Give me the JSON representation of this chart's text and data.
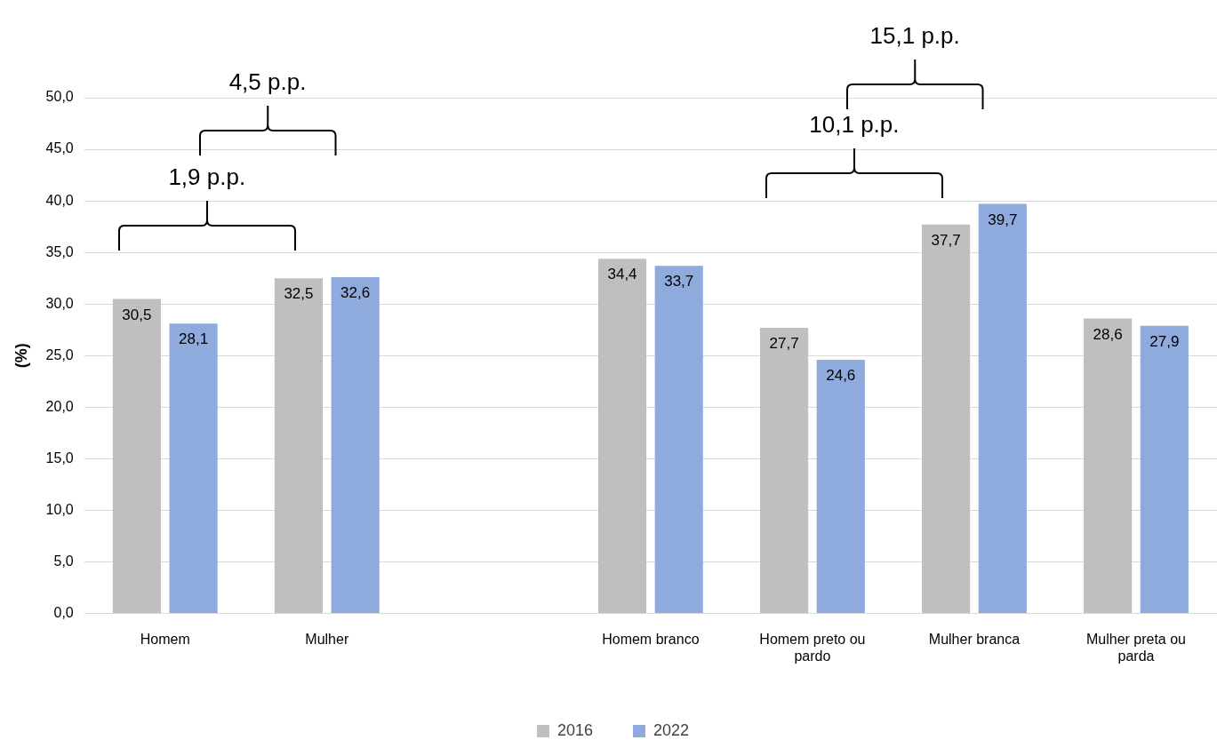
{
  "chart_data": {
    "type": "bar",
    "ylabel": "(%)",
    "categories": [
      "Homem",
      "Mulher",
      null,
      "Homem branco",
      "Homem preto ou pardo",
      "Mulher branca",
      "Mulher preta ou parda"
    ],
    "series": [
      {
        "name": "2016",
        "color": "#bfbfbf",
        "values": [
          30.5,
          32.5,
          null,
          34.4,
          27.7,
          37.7,
          28.6
        ],
        "value_labels": [
          "30,5",
          "32,5",
          null,
          "34,4",
          "27,7",
          "37,7",
          "28,6"
        ]
      },
      {
        "name": "2022",
        "color": "#8faadc",
        "values": [
          28.1,
          32.6,
          null,
          33.7,
          24.6,
          39.7,
          27.9
        ],
        "value_labels": [
          "28,1",
          "32,6",
          null,
          "33,7",
          "24,6",
          "39,7",
          "27,9"
        ]
      }
    ],
    "ylim": [
      0,
      50
    ],
    "yticks": [
      {
        "value": 0,
        "label": "0,0"
      },
      {
        "value": 5,
        "label": "5,0"
      },
      {
        "value": 10,
        "label": "10,0"
      },
      {
        "value": 15,
        "label": "15,0"
      },
      {
        "value": 20,
        "label": "20,0"
      },
      {
        "value": 25,
        "label": "25,0"
      },
      {
        "value": 30,
        "label": "30,0"
      },
      {
        "value": 35,
        "label": "35,0"
      },
      {
        "value": 40,
        "label": "40,0"
      },
      {
        "value": 45,
        "label": "45,0"
      },
      {
        "value": 50,
        "label": "50,0"
      }
    ],
    "grid": "y",
    "legend": "bottom",
    "annotations": [
      "1,9 p.p.",
      "4,5 p.p.",
      "10,1 p.p.",
      "15,1 p.p."
    ]
  }
}
